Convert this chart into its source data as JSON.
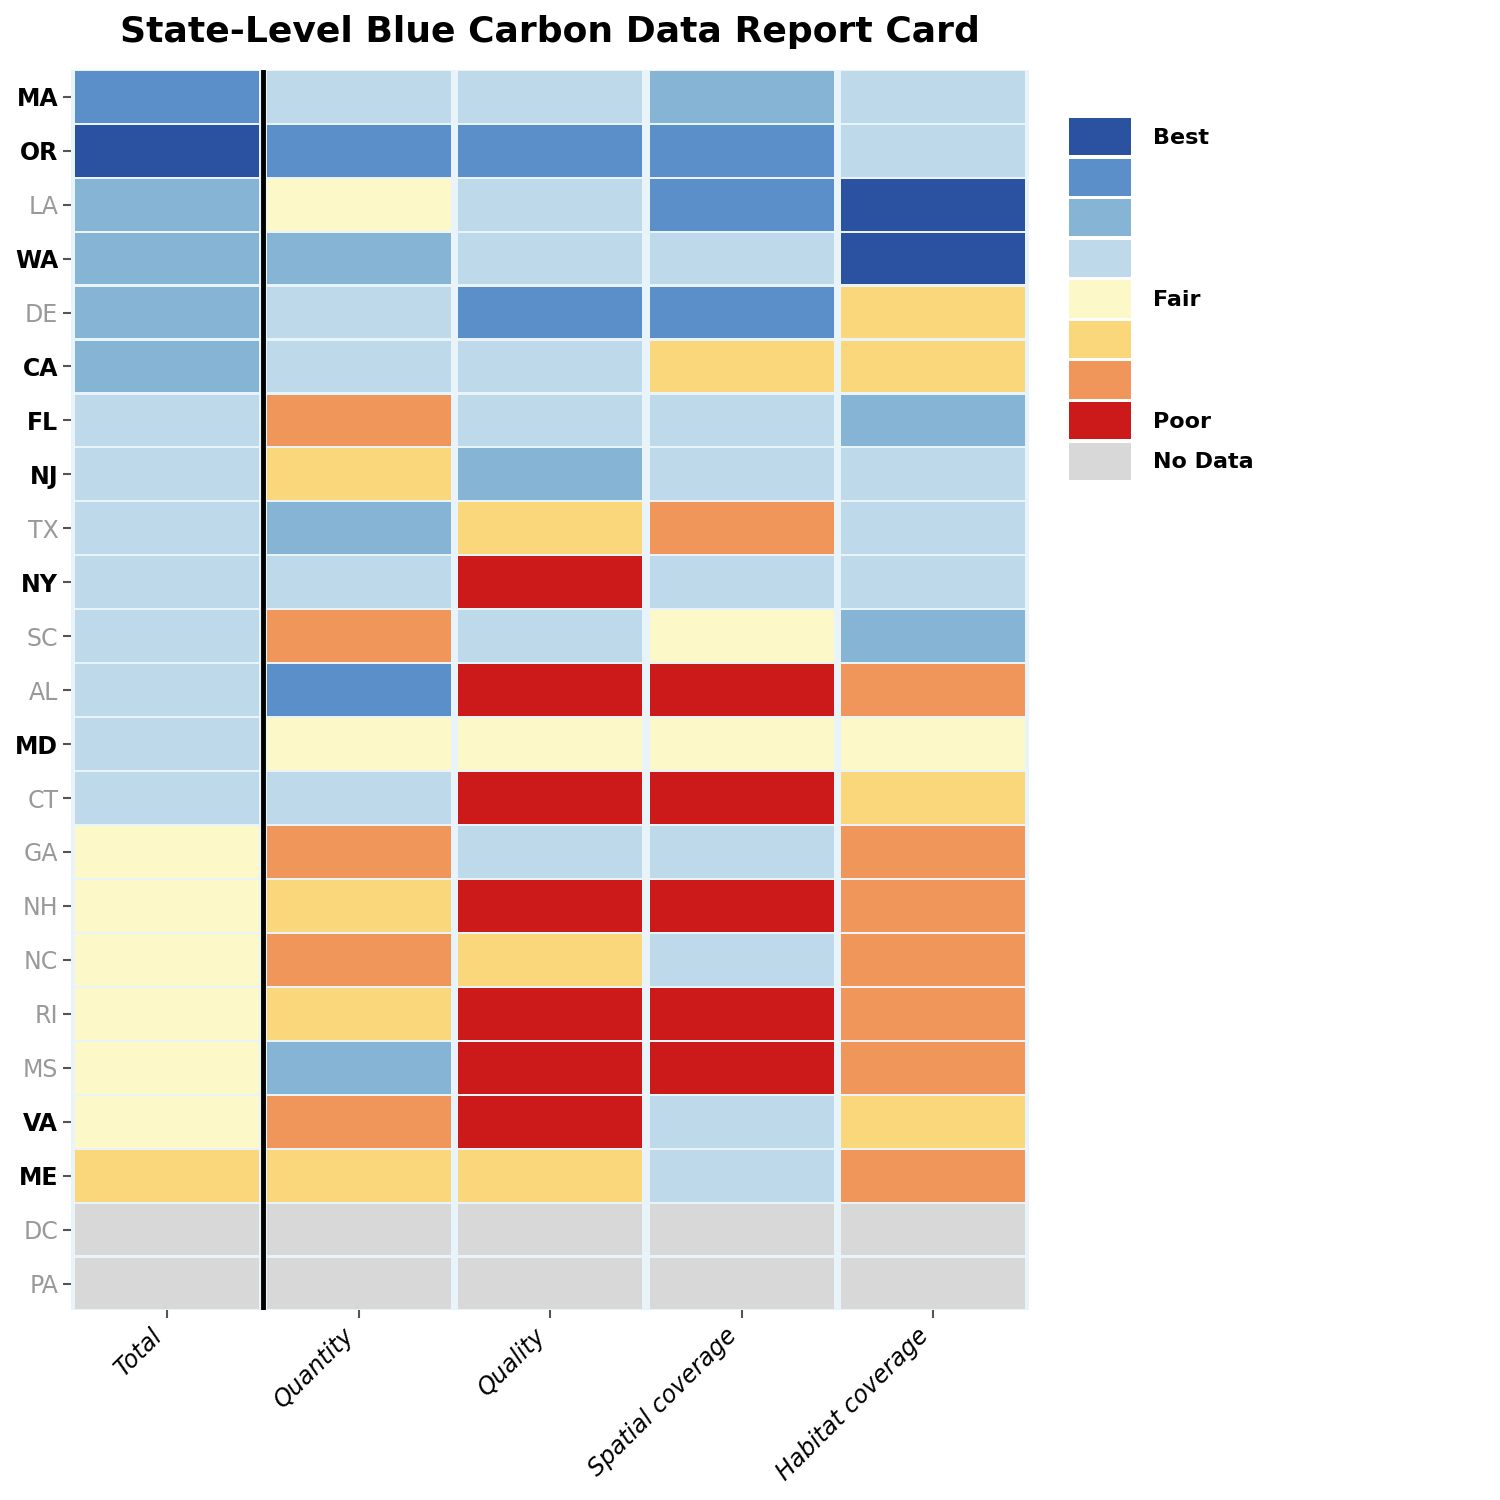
{
  "title": "State-Level Blue Carbon Data Report Card",
  "states": [
    "MA",
    "OR",
    "LA",
    "WA",
    "DE",
    "CA",
    "FL",
    "NJ",
    "TX",
    "NY",
    "SC",
    "AL",
    "MD",
    "CT",
    "GA",
    "NH",
    "NC",
    "RI",
    "MS",
    "VA",
    "ME",
    "DC",
    "PA"
  ],
  "pew_states": [
    "MA",
    "OR",
    "WA",
    "CA",
    "FL",
    "NJ",
    "NY",
    "MD",
    "VA",
    "ME"
  ],
  "columns": [
    "Total",
    "Quantity",
    "Quality",
    "Spatial coverage",
    "Habitat coverage"
  ],
  "color_map": {
    "0": "#d8d8d8",
    "1": "#2a52a0",
    "2": "#5b8fc9",
    "3": "#85b4d4",
    "4": "#bdd9ea",
    "5": "#fdf8c8",
    "6": "#f9d77a",
    "7": "#f0965a",
    "8": "#cc1a1a"
  },
  "state_data": {
    "MA": [
      2,
      4,
      4,
      3,
      4
    ],
    "OR": [
      1,
      2,
      2,
      2,
      4
    ],
    "LA": [
      3,
      5,
      4,
      2,
      1
    ],
    "WA": [
      3,
      3,
      4,
      4,
      1
    ],
    "DE": [
      3,
      4,
      2,
      2,
      6
    ],
    "CA": [
      3,
      4,
      4,
      6,
      6
    ],
    "FL": [
      4,
      7,
      4,
      4,
      3
    ],
    "NJ": [
      4,
      6,
      3,
      4,
      4
    ],
    "TX": [
      4,
      3,
      6,
      7,
      4
    ],
    "NY": [
      4,
      4,
      8,
      4,
      4
    ],
    "SC": [
      4,
      7,
      4,
      5,
      3
    ],
    "AL": [
      4,
      2,
      8,
      8,
      7
    ],
    "MD": [
      4,
      5,
      5,
      5,
      5
    ],
    "CT": [
      4,
      4,
      8,
      8,
      6
    ],
    "GA": [
      5,
      7,
      4,
      4,
      7
    ],
    "NH": [
      5,
      6,
      8,
      8,
      7
    ],
    "NC": [
      5,
      7,
      6,
      4,
      7
    ],
    "RI": [
      5,
      6,
      8,
      8,
      7
    ],
    "MS": [
      5,
      3,
      8,
      8,
      7
    ],
    "VA": [
      5,
      7,
      8,
      4,
      6
    ],
    "ME": [
      6,
      6,
      6,
      4,
      7
    ],
    "DC": [
      0,
      0,
      0,
      0,
      0
    ],
    "PA": [
      0,
      0,
      0,
      0,
      0
    ]
  },
  "legend_colors": [
    "#2a52a0",
    "#5b8fc9",
    "#85b4d4",
    "#bdd9ea",
    "#fdf8c8",
    "#f9d77a",
    "#f0965a",
    "#cc1a1a",
    "#d8d8d8"
  ],
  "legend_labels": [
    "Best",
    "",
    "",
    "",
    "Fair",
    "",
    "",
    "Poor",
    "No Data"
  ],
  "background_color": "#e8f4fa",
  "title_fontsize": 26,
  "label_fontsize": 17,
  "legend_fontsize": 16
}
